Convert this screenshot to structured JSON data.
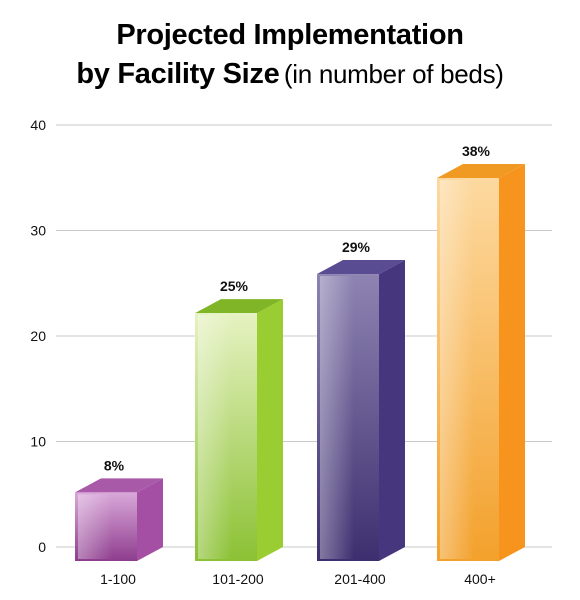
{
  "title": {
    "line1": "Projected Implementation",
    "line2_bold": "by Facility Size",
    "line2_light": "(in number of beds)"
  },
  "chart_data": {
    "type": "bar",
    "title": "Projected Implementation by Facility Size (in number of beds)",
    "categories": [
      "1-100",
      "101-200",
      "201-400",
      "400+"
    ],
    "values": [
      8,
      25,
      29,
      38
    ],
    "data_labels": [
      "8%",
      "25%",
      "29%",
      "38%"
    ],
    "bar_heights": [
      6.5,
      23.5,
      27.2,
      36.3
    ],
    "ylim": [
      0,
      40
    ],
    "yticks": [
      0,
      10,
      20,
      30,
      40
    ],
    "grid": true,
    "xlabel": "",
    "ylabel": "",
    "colors": {
      "1-100": {
        "front": "#8e3d8e",
        "side": "#a44fa4",
        "top": "#a85aa8",
        "light": "#d9a8d9"
      },
      "101-200": {
        "front": "#8bc134",
        "side": "#9acd32",
        "top": "#7fb526",
        "light": "#e6f2c2"
      },
      "201-400": {
        "front": "#3d2f6f",
        "side": "#45367e",
        "top": "#5a4c93",
        "light": "#8e84b2"
      },
      "400+": {
        "front": "#f3a12c",
        "side": "#f7941d",
        "top": "#f09a24",
        "light": "#fdd9a0"
      }
    }
  }
}
